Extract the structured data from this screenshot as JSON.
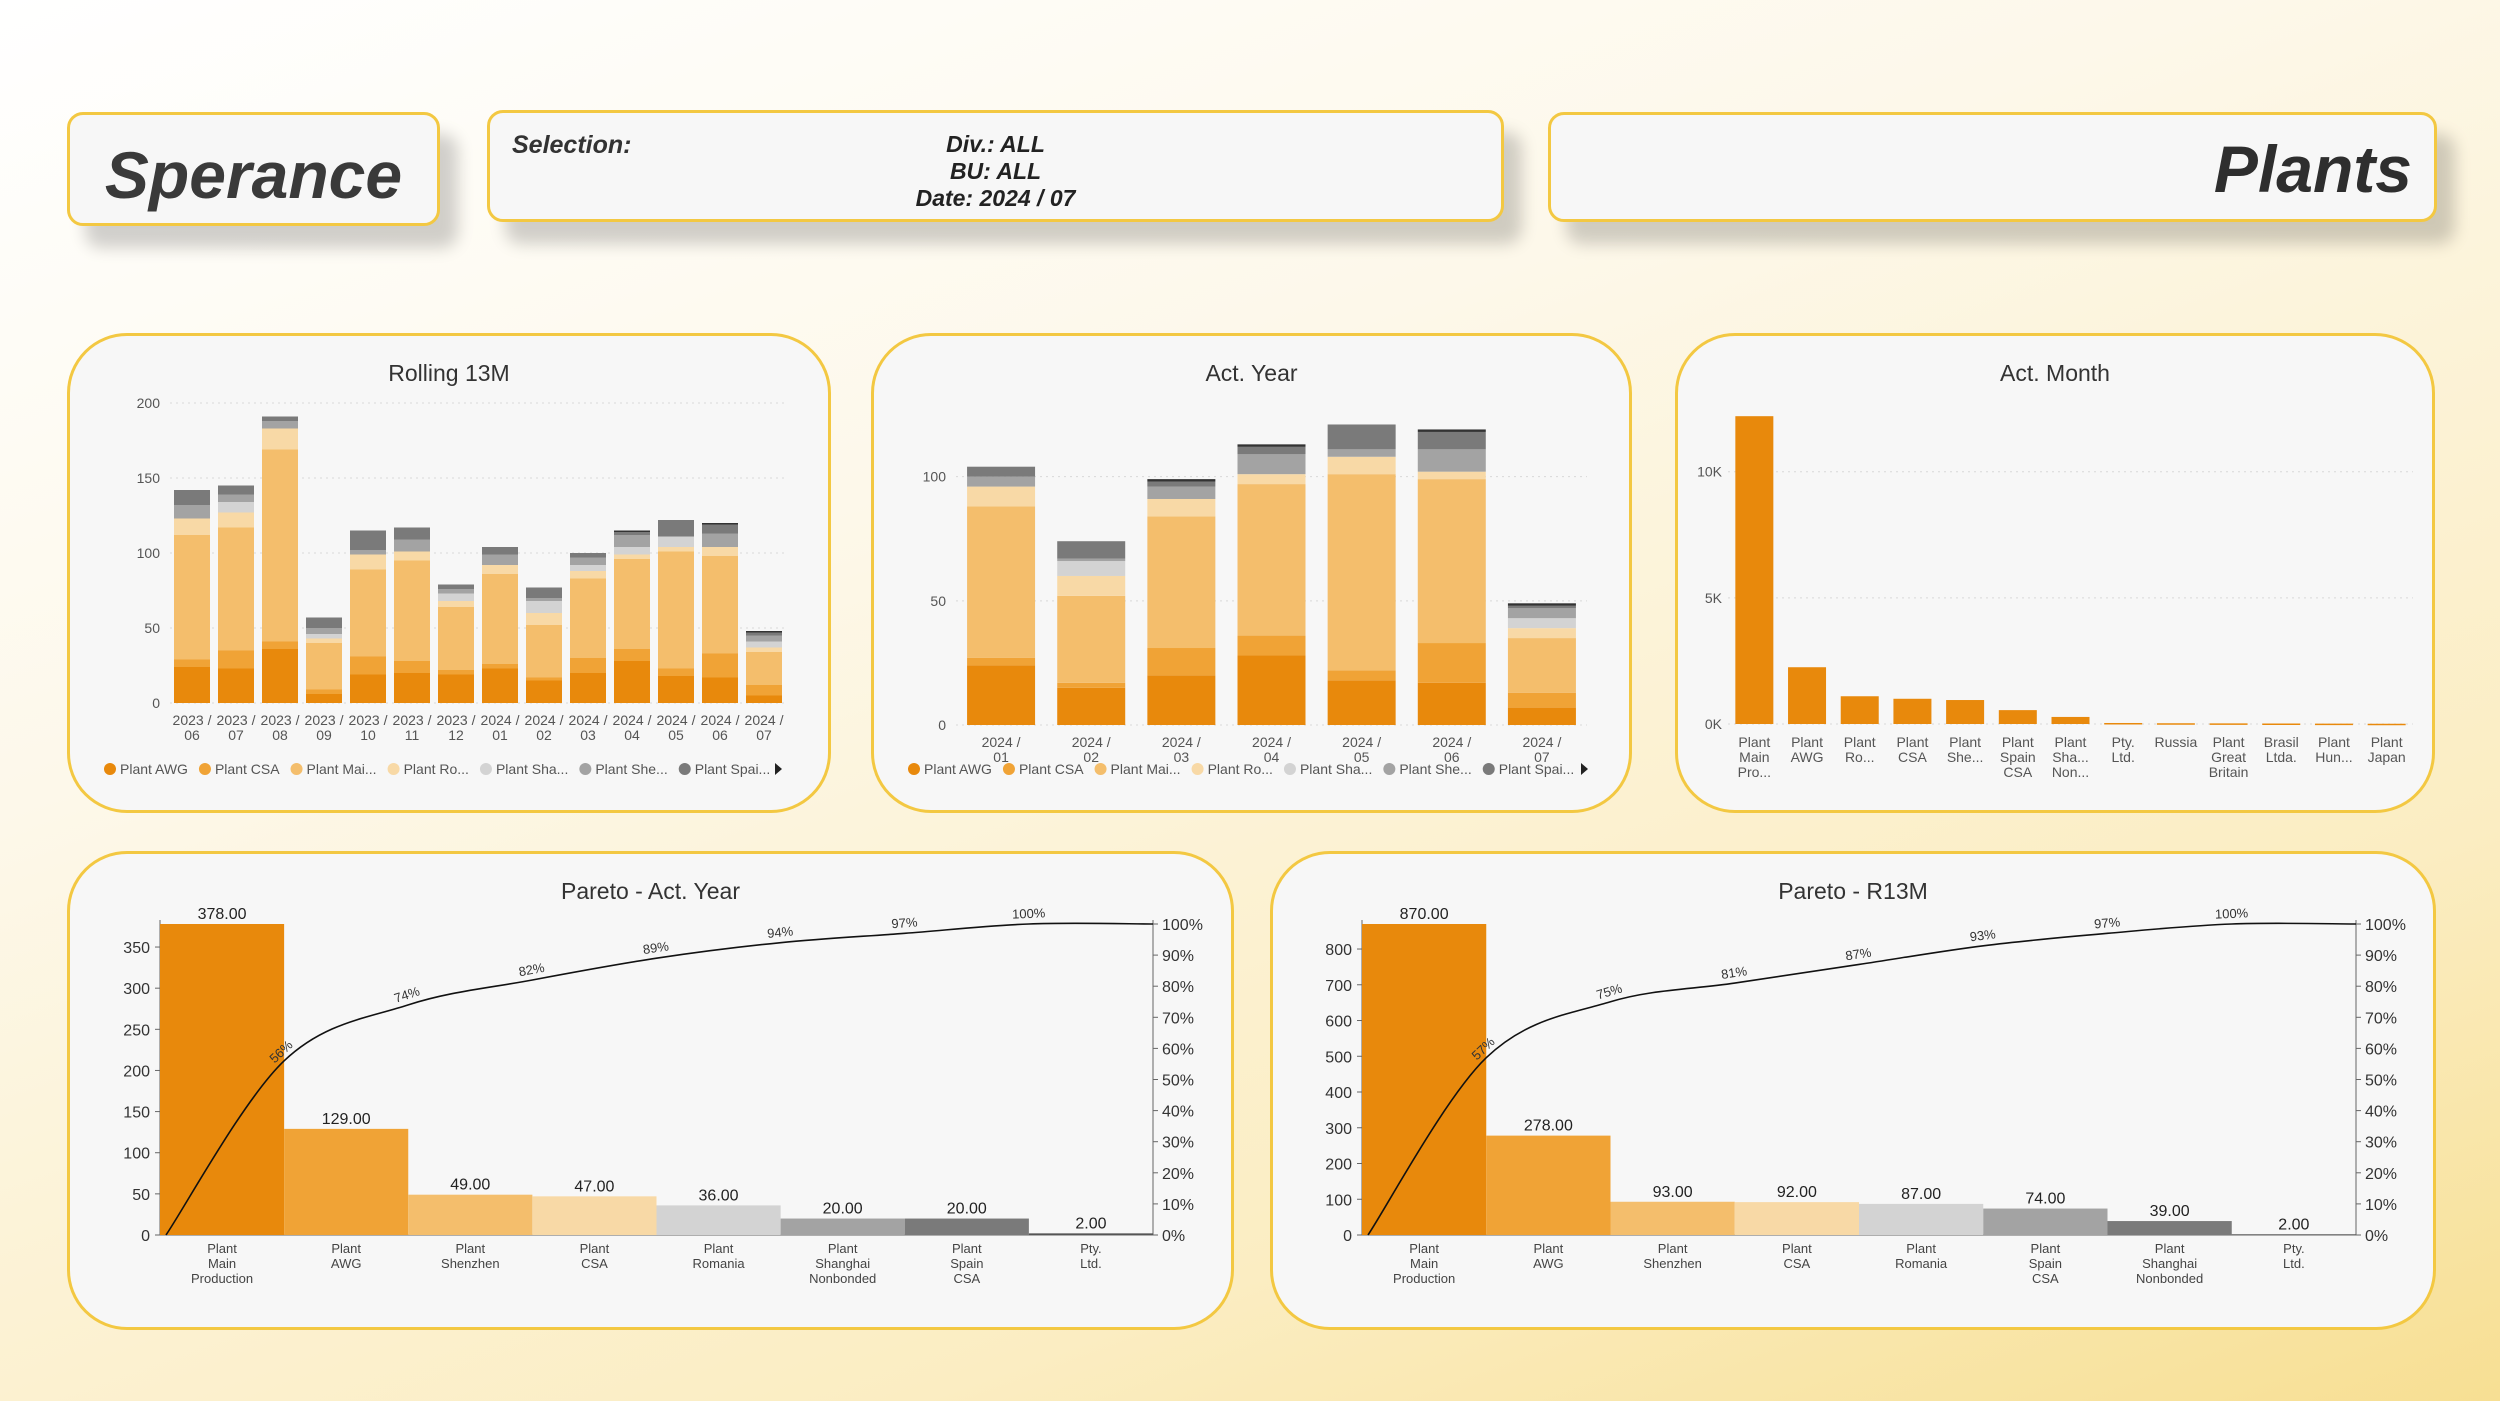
{
  "header": {
    "logo_text": "Sperance",
    "selection_label": "Selection:",
    "selection_lines": [
      "Div.: ALL",
      "BU: ALL",
      "Date: 2024 / 07"
    ],
    "page_title": "Plants"
  },
  "colors": {
    "accent_border": "#f3c842",
    "plant_awg": "#e8890c",
    "plant_csa": "#f0a336",
    "plant_main": "#f4be6c",
    "plant_romania": "#f8d9a6",
    "plant_shanghai": "#d3d3d3",
    "plant_shenzhen": "#a3a3a3",
    "plant_spain": "#7a7a7a"
  },
  "chart_data": [
    {
      "id": "rolling13m",
      "type": "bar",
      "stacked": true,
      "title": "Rolling 13M",
      "categories": [
        "2023 / 06",
        "2023 / 07",
        "2023 / 08",
        "2023 / 09",
        "2023 / 10",
        "2023 / 11",
        "2023 / 12",
        "2024 / 01",
        "2024 / 02",
        "2024 / 03",
        "2024 / 04",
        "2024 / 05",
        "2024 / 06",
        "2024 / 07"
      ],
      "ylim": [
        0,
        200
      ],
      "yticks": [
        0,
        50,
        100,
        150,
        200
      ],
      "grid": true,
      "legend_position": "bottom",
      "series": [
        {
          "name": "Plant AWG",
          "color": "#e8890c",
          "values": [
            24,
            23,
            36,
            6,
            19,
            20,
            19,
            23,
            15,
            20,
            28,
            18,
            17,
            5
          ]
        },
        {
          "name": "Plant CSA",
          "color": "#f0a336",
          "values": [
            5,
            12,
            5,
            3,
            12,
            8,
            3,
            3,
            2,
            10,
            8,
            5,
            16,
            7
          ]
        },
        {
          "name": "Plant Mai...",
          "color": "#f4be6c",
          "values": [
            83,
            82,
            128,
            31,
            58,
            67,
            42,
            60,
            35,
            53,
            60,
            78,
            65,
            22
          ]
        },
        {
          "name": "Plant Ro...",
          "color": "#f8d9a6",
          "values": [
            11,
            10,
            14,
            3,
            10,
            6,
            4,
            6,
            8,
            5,
            3,
            3,
            6,
            3
          ]
        },
        {
          "name": "Plant Sha...",
          "color": "#d3d3d3",
          "values": [
            0,
            7,
            0,
            3,
            0,
            0,
            5,
            0,
            8,
            4,
            5,
            7,
            0,
            4
          ]
        },
        {
          "name": "Plant She...",
          "color": "#a3a3a3",
          "values": [
            9,
            5,
            5,
            4,
            3,
            8,
            3,
            7,
            2,
            5,
            8,
            0,
            9,
            4
          ]
        },
        {
          "name": "Plant Spai...",
          "color": "#7a7a7a",
          "values": [
            10,
            6,
            3,
            7,
            13,
            8,
            3,
            5,
            7,
            3,
            2,
            11,
            6,
            2
          ]
        },
        {
          "name": "",
          "color": "#333333",
          "values": [
            0,
            0,
            0,
            0,
            0,
            0,
            0,
            0,
            0,
            0,
            1,
            0,
            1,
            1
          ]
        }
      ]
    },
    {
      "id": "actyear",
      "type": "bar",
      "stacked": true,
      "title": "Act. Year",
      "categories": [
        "2024 / 01",
        "2024 / 02",
        "2024 / 03",
        "2024 / 04",
        "2024 / 05",
        "2024 / 06",
        "2024 / 07"
      ],
      "ylim": [
        0,
        122
      ],
      "yticks": [
        0,
        50,
        100
      ],
      "grid": true,
      "legend_position": "bottom",
      "series": [
        {
          "name": "Plant AWG",
          "color": "#e8890c",
          "values": [
            24,
            15,
            20,
            28,
            18,
            17,
            7
          ]
        },
        {
          "name": "Plant CSA",
          "color": "#f0a336",
          "values": [
            3,
            2,
            11,
            8,
            4,
            16,
            6
          ]
        },
        {
          "name": "Plant Mai...",
          "color": "#f4be6c",
          "values": [
            61,
            35,
            53,
            61,
            79,
            66,
            22
          ]
        },
        {
          "name": "Plant Ro...",
          "color": "#f8d9a6",
          "values": [
            8,
            8,
            7,
            4,
            7,
            3,
            4
          ]
        },
        {
          "name": "Plant Sha...",
          "color": "#d3d3d3",
          "values": [
            0,
            6,
            0,
            0,
            0,
            0,
            4
          ]
        },
        {
          "name": "Plant She...",
          "color": "#a3a3a3",
          "values": [
            4,
            1,
            5,
            8,
            3,
            9,
            4
          ]
        },
        {
          "name": "Plant Spai...",
          "color": "#7a7a7a",
          "values": [
            4,
            7,
            2,
            3,
            10,
            7,
            1
          ]
        },
        {
          "name": "",
          "color": "#333333",
          "values": [
            0,
            0,
            1,
            1,
            0,
            1,
            1
          ]
        }
      ]
    },
    {
      "id": "actmonth",
      "type": "bar",
      "title": "Act. Month",
      "categories": [
        "Plant Main Pro...",
        "Plant AWG",
        "Plant Ro...",
        "Plant CSA",
        "Plant She...",
        "Plant Spain CSA",
        "Plant Sha... Non...",
        "Pty. Ltd.",
        "Russia",
        "Plant Great Britain",
        "Brasil Ltda.",
        "Plant Hun...",
        "Plant Japan"
      ],
      "values": [
        12200,
        2250,
        1100,
        1000,
        950,
        550,
        280,
        40,
        30,
        25,
        20,
        15,
        10
      ],
      "ylim": [
        0,
        13000
      ],
      "yticks": [
        0,
        5000,
        10000
      ],
      "ytick_labels": [
        "0K",
        "5K",
        "10K"
      ],
      "grid": true,
      "color": "#e8890c"
    },
    {
      "id": "paretoyear",
      "type": "bar",
      "title": "Pareto - Act. Year",
      "categories": [
        "Plant Main Production",
        "Plant AWG",
        "Plant Shenzhen",
        "Plant CSA",
        "Plant Romania",
        "Plant Shanghai Nonbonded",
        "Plant Spain CSA",
        "Pty. Ltd."
      ],
      "values": [
        378,
        129,
        49,
        47,
        36,
        20,
        20,
        2
      ],
      "value_labels": [
        "378.00",
        "129.00",
        "49.00",
        "47.00",
        "36.00",
        "20.00",
        "20.00",
        "2.00"
      ],
      "colors": [
        "#e8890c",
        "#f0a336",
        "#f4be6c",
        "#f8d9a6",
        "#d3d3d3",
        "#a3a3a3",
        "#7a7a7a",
        "#555555"
      ],
      "cumulative_pct": [
        56,
        74,
        82,
        89,
        94,
        97,
        100,
        100
      ],
      "cumulative_labels": [
        "56%",
        "74%",
        "82%",
        "89%",
        "94%",
        "97%",
        "100%",
        ""
      ],
      "ylim": [
        0,
        378
      ],
      "yticks": [
        0,
        50,
        100,
        150,
        200,
        250,
        300,
        350
      ],
      "y2ticks": [
        "0%",
        "10%",
        "20%",
        "30%",
        "40%",
        "50%",
        "60%",
        "70%",
        "80%",
        "90%",
        "100%"
      ]
    },
    {
      "id": "paretor13m",
      "type": "bar",
      "title": "Pareto - R13M",
      "categories": [
        "Plant Main Production",
        "Plant AWG",
        "Plant Shenzhen",
        "Plant CSA",
        "Plant Romania",
        "Plant Spain CSA",
        "Plant Shanghai Nonbonded",
        "Pty. Ltd."
      ],
      "values": [
        870,
        278,
        93,
        92,
        87,
        74,
        39,
        2
      ],
      "value_labels": [
        "870.00",
        "278.00",
        "93.00",
        "92.00",
        "87.00",
        "74.00",
        "39.00",
        "2.00"
      ],
      "colors": [
        "#e8890c",
        "#f0a336",
        "#f4be6c",
        "#f8d9a6",
        "#d3d3d3",
        "#a3a3a3",
        "#7a7a7a",
        "#555555"
      ],
      "cumulative_pct": [
        57,
        75,
        81,
        87,
        93,
        97,
        100,
        100
      ],
      "cumulative_labels": [
        "57%",
        "75%",
        "81%",
        "87%",
        "93%",
        "97%",
        "100%",
        ""
      ],
      "ylim": [
        0,
        870
      ],
      "yticks": [
        0,
        100,
        200,
        300,
        400,
        500,
        600,
        700,
        800
      ],
      "y2ticks": [
        "0%",
        "10%",
        "20%",
        "30%",
        "40%",
        "50%",
        "60%",
        "70%",
        "80%",
        "90%",
        "100%"
      ]
    }
  ]
}
